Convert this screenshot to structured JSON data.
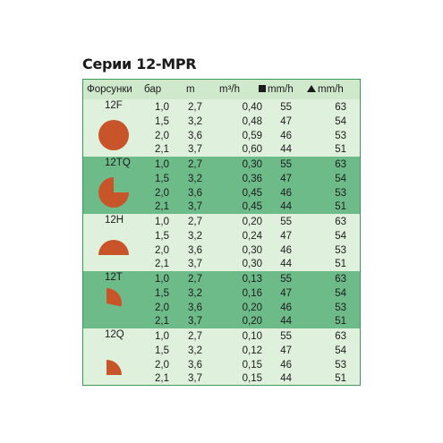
{
  "title": "Серии 12-MPR",
  "headers": {
    "nozzle": "Форсунки",
    "pressure": "бар",
    "radius": "m",
    "flow": "m³/h",
    "square_precip": "mm/h",
    "triangle_precip": "mm/h"
  },
  "colors": {
    "border": "#3c9a58",
    "header_bg": "#d0e8cc",
    "light_row": "#dff0dc",
    "dark_row": "#6dbb88",
    "shape_fill": "#c8552a"
  },
  "groups": [
    {
      "nozzle": "12F",
      "shape": "full-circle",
      "rows": [
        [
          "1,0",
          "2,7",
          "0,40",
          "55",
          "63"
        ],
        [
          "1,5",
          "3,2",
          "0,48",
          "47",
          "54"
        ],
        [
          "2,0",
          "3,6",
          "0,59",
          "46",
          "53"
        ],
        [
          "2,1",
          "3,7",
          "0,60",
          "44",
          "51"
        ]
      ]
    },
    {
      "nozzle": "12TQ",
      "shape": "three-quarter-circle",
      "rows": [
        [
          "1,0",
          "2,7",
          "0,30",
          "55",
          "63"
        ],
        [
          "1,5",
          "3,2",
          "0,36",
          "47",
          "54"
        ],
        [
          "2,0",
          "3,6",
          "0,45",
          "46",
          "53"
        ],
        [
          "2,1",
          "3,7",
          "0,45",
          "44",
          "51"
        ]
      ]
    },
    {
      "nozzle": "12H",
      "shape": "half-circle",
      "rows": [
        [
          "1,0",
          "2,7",
          "0,20",
          "55",
          "63"
        ],
        [
          "1,5",
          "3,2",
          "0,24",
          "47",
          "54"
        ],
        [
          "2,0",
          "3,6",
          "0,30",
          "46",
          "53"
        ],
        [
          "2,1",
          "3,7",
          "0,30",
          "44",
          "51"
        ]
      ]
    },
    {
      "nozzle": "12T",
      "shape": "third-circle",
      "rows": [
        [
          "1,0",
          "2,7",
          "0,13",
          "55",
          "63"
        ],
        [
          "1,5",
          "3,2",
          "0,16",
          "47",
          "54"
        ],
        [
          "2,0",
          "3,6",
          "0,20",
          "46",
          "53"
        ],
        [
          "2,1",
          "3,7",
          "0,20",
          "44",
          "51"
        ]
      ]
    },
    {
      "nozzle": "12Q",
      "shape": "quarter-circle",
      "rows": [
        [
          "1,0",
          "2,7",
          "0,10",
          "55",
          "63"
        ],
        [
          "1,5",
          "3,2",
          "0,12",
          "47",
          "54"
        ],
        [
          "2,0",
          "3,6",
          "0,15",
          "46",
          "53"
        ],
        [
          "2,1",
          "3,7",
          "0,15",
          "44",
          "51"
        ]
      ]
    }
  ]
}
